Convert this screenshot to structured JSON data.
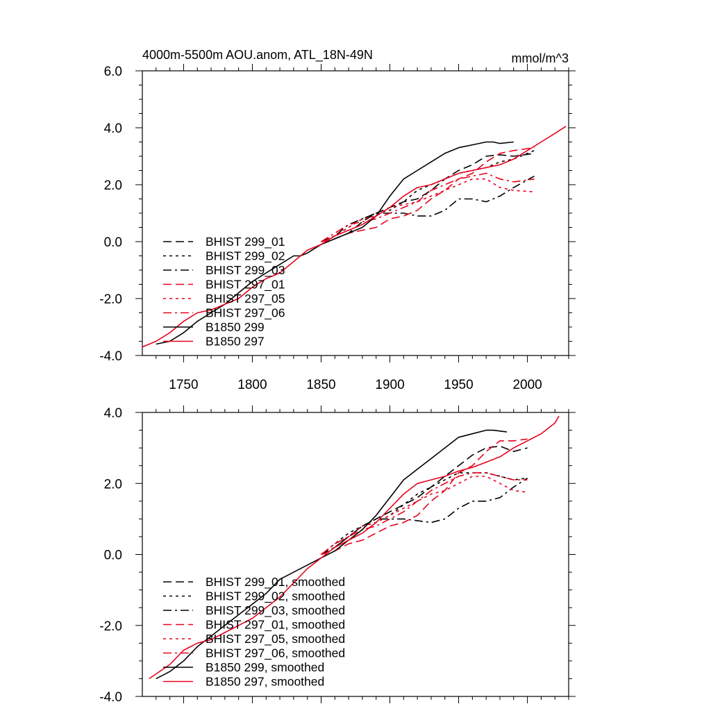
{
  "chart_data": [
    {
      "type": "line",
      "title": "4000m-5500m AOU.anom, ATL_18N-49N",
      "units": "mmol/m^3",
      "xlim": [
        1720,
        2030
      ],
      "ylim": [
        -4,
        6
      ],
      "xticks": [
        1750,
        1800,
        1850,
        1900,
        1950,
        2000
      ],
      "yticks": [
        -4,
        -2,
        0,
        2,
        4,
        6
      ],
      "ytick_labels": [
        "-4.0",
        "-2.0",
        "0.0",
        "2.0",
        "4.0",
        "6.0"
      ],
      "legend_position": "bottom-left",
      "series": [
        {
          "name": "BHIST 299_01",
          "color": "#000000",
          "style": "dash",
          "x": [
            1850,
            1860,
            1870,
            1880,
            1890,
            1900,
            1910,
            1920,
            1930,
            1940,
            1950,
            1960,
            1970,
            1980,
            1990,
            2005
          ],
          "y": [
            0.0,
            0.1,
            0.3,
            0.7,
            1.0,
            1.2,
            1.4,
            1.5,
            1.8,
            2.2,
            2.5,
            2.7,
            3.0,
            3.05,
            3.0,
            3.1
          ]
        },
        {
          "name": "BHIST 299_02",
          "color": "#000000",
          "style": "dot",
          "x": [
            1850,
            1860,
            1870,
            1880,
            1890,
            1900,
            1910,
            1920,
            1930,
            1940,
            1950,
            1960,
            1970,
            1980,
            1990,
            2005
          ],
          "y": [
            0.0,
            0.2,
            0.5,
            0.8,
            1.0,
            1.1,
            1.4,
            1.8,
            2.0,
            2.2,
            2.4,
            2.5,
            2.6,
            2.8,
            2.9,
            3.2
          ]
        },
        {
          "name": "BHIST 299_03",
          "color": "#000000",
          "style": "dashdot",
          "x": [
            1850,
            1860,
            1870,
            1880,
            1890,
            1900,
            1910,
            1920,
            1930,
            1940,
            1950,
            1960,
            1970,
            1980,
            1990,
            2005
          ],
          "y": [
            0.0,
            0.2,
            0.6,
            0.8,
            1.0,
            1.0,
            1.0,
            0.9,
            0.9,
            1.1,
            1.5,
            1.5,
            1.4,
            1.6,
            1.9,
            2.3
          ]
        },
        {
          "name": "BHIST 297_01",
          "color": "#e8001c",
          "style": "dash",
          "x": [
            1850,
            1860,
            1870,
            1880,
            1890,
            1900,
            1910,
            1920,
            1930,
            1940,
            1950,
            1960,
            1970,
            1980,
            1990,
            2005
          ],
          "y": [
            0.0,
            0.1,
            0.3,
            0.4,
            0.5,
            0.8,
            0.9,
            1.1,
            1.5,
            1.8,
            2.2,
            2.4,
            2.8,
            3.1,
            3.2,
            3.3
          ]
        },
        {
          "name": "BHIST 297_05",
          "color": "#e8001c",
          "style": "dot",
          "x": [
            1850,
            1860,
            1870,
            1880,
            1890,
            1900,
            1910,
            1920,
            1930,
            1940,
            1950,
            1960,
            1970,
            1980,
            1990,
            2005
          ],
          "y": [
            0.0,
            0.2,
            0.5,
            0.8,
            0.9,
            1.2,
            1.3,
            1.4,
            1.6,
            1.8,
            2.0,
            2.2,
            2.2,
            1.9,
            1.8,
            1.75
          ]
        },
        {
          "name": "BHIST 297_06",
          "color": "#e8001c",
          "style": "dashdot",
          "x": [
            1850,
            1860,
            1870,
            1880,
            1890,
            1900,
            1910,
            1920,
            1930,
            1940,
            1950,
            1960,
            1970,
            1980,
            1990,
            2005
          ],
          "y": [
            0.0,
            0.3,
            0.6,
            0.7,
            0.8,
            1.0,
            1.2,
            1.4,
            1.8,
            2.0,
            2.2,
            2.3,
            2.4,
            2.2,
            2.1,
            2.2
          ]
        },
        {
          "name": "B1850 299",
          "color": "#000000",
          "style": "solid",
          "x": [
            1730,
            1740,
            1750,
            1760,
            1770,
            1780,
            1790,
            1800,
            1810,
            1820,
            1830,
            1835,
            1840,
            1850,
            1860,
            1870,
            1880,
            1890,
            1900,
            1910,
            1920,
            1930,
            1940,
            1950,
            1960,
            1970,
            1975,
            1980,
            1990
          ],
          "y": [
            -3.6,
            -3.5,
            -3.2,
            -2.8,
            -2.5,
            -2.2,
            -1.8,
            -1.4,
            -1.1,
            -0.8,
            -0.5,
            -0.5,
            -0.4,
            -0.1,
            0.1,
            0.3,
            0.5,
            0.9,
            1.6,
            2.2,
            2.5,
            2.8,
            3.1,
            3.3,
            3.4,
            3.5,
            3.5,
            3.45,
            3.5
          ]
        },
        {
          "name": "B1850 297",
          "color": "#e8001c",
          "style": "solid",
          "x": [
            1720,
            1730,
            1740,
            1750,
            1760,
            1770,
            1780,
            1790,
            1800,
            1810,
            1820,
            1830,
            1840,
            1850,
            1860,
            1870,
            1880,
            1890,
            1900,
            1910,
            1920,
            1930,
            1940,
            1950,
            1960,
            1970,
            1980,
            1990,
            2000,
            2010,
            2020,
            2028
          ],
          "y": [
            -3.7,
            -3.5,
            -3.2,
            -2.8,
            -2.5,
            -2.4,
            -2.2,
            -2.0,
            -1.6,
            -1.3,
            -1.1,
            -0.7,
            -0.3,
            -0.1,
            0.2,
            0.4,
            0.6,
            0.9,
            1.2,
            1.6,
            1.9,
            2.0,
            2.2,
            2.4,
            2.5,
            2.6,
            2.7,
            2.9,
            3.2,
            3.5,
            3.8,
            4.05
          ]
        }
      ]
    },
    {
      "type": "line",
      "xlim": [
        1720,
        2030
      ],
      "ylim": [
        -4,
        4
      ],
      "xticks": [
        1750,
        1800,
        1850,
        1900,
        1950,
        2000
      ],
      "yticks": [
        -4,
        -2,
        0,
        2,
        4
      ],
      "ytick_labels": [
        "-4.0",
        "-2.0",
        "0.0",
        "2.0",
        "4.0"
      ],
      "legend_position": "bottom-left",
      "series": [
        {
          "name": "BHIST 299_01, smoothed",
          "color": "#000000",
          "style": "dash",
          "x": [
            1850,
            1860,
            1870,
            1880,
            1890,
            1900,
            1910,
            1920,
            1930,
            1940,
            1950,
            1960,
            1970,
            1980,
            1990,
            2000
          ],
          "y": [
            0.0,
            0.2,
            0.5,
            0.8,
            1.0,
            1.2,
            1.4,
            1.6,
            1.9,
            2.2,
            2.5,
            2.8,
            3.0,
            3.05,
            2.9,
            3.0
          ]
        },
        {
          "name": "BHIST 299_02, smoothed",
          "color": "#000000",
          "style": "dot",
          "x": [
            1850,
            1860,
            1870,
            1880,
            1890,
            1900,
            1910,
            1920,
            1930,
            1940,
            1950,
            1960,
            1970,
            1980,
            1990,
            2000
          ],
          "y": [
            0.0,
            0.3,
            0.6,
            0.8,
            0.9,
            1.1,
            1.4,
            1.7,
            1.9,
            2.1,
            2.3,
            2.3,
            2.3,
            2.2,
            2.1,
            2.15
          ]
        },
        {
          "name": "BHIST 299_03, smoothed",
          "color": "#000000",
          "style": "dashdot",
          "x": [
            1850,
            1860,
            1870,
            1880,
            1890,
            1900,
            1910,
            1920,
            1930,
            1940,
            1950,
            1960,
            1970,
            1980,
            1990,
            2000
          ],
          "y": [
            0.0,
            0.2,
            0.5,
            0.8,
            1.0,
            1.0,
            1.0,
            0.95,
            0.9,
            1.0,
            1.3,
            1.5,
            1.5,
            1.6,
            1.9,
            2.15
          ]
        },
        {
          "name": "BHIST 297_01, smoothed",
          "color": "#e8001c",
          "style": "dash",
          "x": [
            1850,
            1860,
            1870,
            1880,
            1890,
            1900,
            1910,
            1920,
            1930,
            1940,
            1950,
            1960,
            1970,
            1980,
            1990,
            2000
          ],
          "y": [
            0.0,
            0.1,
            0.3,
            0.4,
            0.6,
            0.8,
            0.9,
            1.1,
            1.5,
            1.8,
            2.3,
            2.5,
            2.9,
            3.2,
            3.2,
            3.25
          ]
        },
        {
          "name": "BHIST 297_05, smoothed",
          "color": "#e8001c",
          "style": "dot",
          "x": [
            1850,
            1860,
            1870,
            1880,
            1890,
            1900,
            1910,
            1920,
            1930,
            1940,
            1950,
            1960,
            1970,
            1980,
            1990,
            2000
          ],
          "y": [
            0.0,
            0.3,
            0.5,
            0.8,
            0.9,
            1.1,
            1.3,
            1.5,
            1.7,
            1.8,
            2.0,
            2.2,
            2.2,
            2.0,
            1.8,
            1.75
          ]
        },
        {
          "name": "BHIST 297_06, smoothed",
          "color": "#e8001c",
          "style": "dashdot",
          "x": [
            1850,
            1860,
            1870,
            1880,
            1890,
            1900,
            1910,
            1920,
            1930,
            1940,
            1950,
            1960,
            1970,
            1980,
            1990,
            2000
          ],
          "y": [
            0.0,
            0.3,
            0.5,
            0.7,
            0.8,
            1.0,
            1.2,
            1.5,
            1.8,
            2.0,
            2.2,
            2.3,
            2.3,
            2.2,
            2.1,
            2.1
          ]
        },
        {
          "name": "B1850 299, smoothed",
          "color": "#000000",
          "style": "solid",
          "x": [
            1730,
            1740,
            1750,
            1760,
            1770,
            1780,
            1790,
            1800,
            1810,
            1820,
            1830,
            1840,
            1850,
            1860,
            1870,
            1880,
            1890,
            1900,
            1910,
            1920,
            1930,
            1940,
            1950,
            1960,
            1970,
            1975,
            1985
          ],
          "y": [
            -3.5,
            -3.3,
            -3.0,
            -2.6,
            -2.3,
            -2.0,
            -1.7,
            -1.4,
            -1.1,
            -0.7,
            -0.5,
            -0.3,
            -0.1,
            0.1,
            0.4,
            0.7,
            1.1,
            1.6,
            2.1,
            2.4,
            2.7,
            3.0,
            3.3,
            3.4,
            3.5,
            3.5,
            3.45
          ]
        },
        {
          "name": "B1850 297, smoothed",
          "color": "#e8001c",
          "style": "solid",
          "x": [
            1725,
            1740,
            1750,
            1760,
            1770,
            1780,
            1790,
            1800,
            1810,
            1820,
            1830,
            1840,
            1850,
            1860,
            1870,
            1880,
            1890,
            1900,
            1910,
            1920,
            1930,
            1940,
            1950,
            1960,
            1970,
            1980,
            1990,
            2000,
            2010,
            2020,
            2023
          ],
          "y": [
            -3.5,
            -3.1,
            -2.7,
            -2.5,
            -2.4,
            -2.2,
            -2.0,
            -1.8,
            -1.5,
            -1.2,
            -0.8,
            -0.4,
            -0.1,
            0.2,
            0.4,
            0.6,
            0.9,
            1.3,
            1.7,
            2.0,
            2.1,
            2.2,
            2.35,
            2.45,
            2.6,
            2.75,
            3.0,
            3.2,
            3.4,
            3.7,
            3.9
          ]
        }
      ]
    }
  ]
}
